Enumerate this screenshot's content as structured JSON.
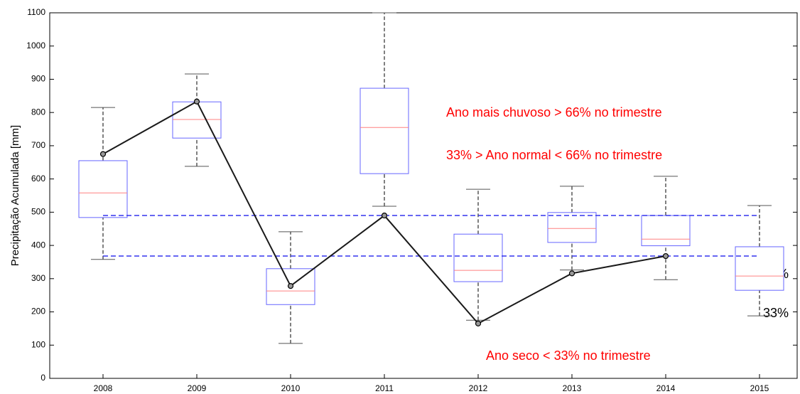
{
  "chart_data": {
    "type": "box",
    "y_label": "Precipitação Acumulada [mm]",
    "categories": [
      "2008",
      "2009",
      "2010",
      "2011",
      "2012",
      "2013",
      "2014",
      "2015"
    ],
    "boxes": {
      "whisker_low": [
        358,
        638,
        105,
        518,
        175,
        326,
        297,
        188
      ],
      "q1": [
        484,
        723,
        222,
        616,
        291,
        409,
        399,
        265
      ],
      "median": [
        558,
        779,
        263,
        755,
        325,
        451,
        419,
        308
      ],
      "q3": [
        655,
        832,
        330,
        873,
        434,
        499,
        490,
        396
      ],
      "whisker_high": [
        815,
        916,
        441,
        1100,
        569,
        578,
        608,
        520
      ],
      "color": "#6666ff",
      "median_color": "#ff8080"
    },
    "line": {
      "values": [
        675,
        833,
        278,
        490,
        165,
        316,
        368,
        null
      ],
      "color": "#1a1a1a"
    },
    "reference_lines": [
      {
        "value": 490,
        "label": "66%",
        "color": "#3333ee"
      },
      {
        "value": 368,
        "label": "33%",
        "color": "#3333ee"
      }
    ],
    "annotations": [
      "Ano mais chuvoso > 66% no trimestre",
      "33% > Ano normal < 66% no trimestre",
      "Ano seco < 33% no trimestre"
    ],
    "ylim": [
      0,
      1100
    ],
    "yticks": [
      0,
      100,
      200,
      300,
      400,
      500,
      600,
      700,
      800,
      900,
      1000,
      1100
    ]
  }
}
